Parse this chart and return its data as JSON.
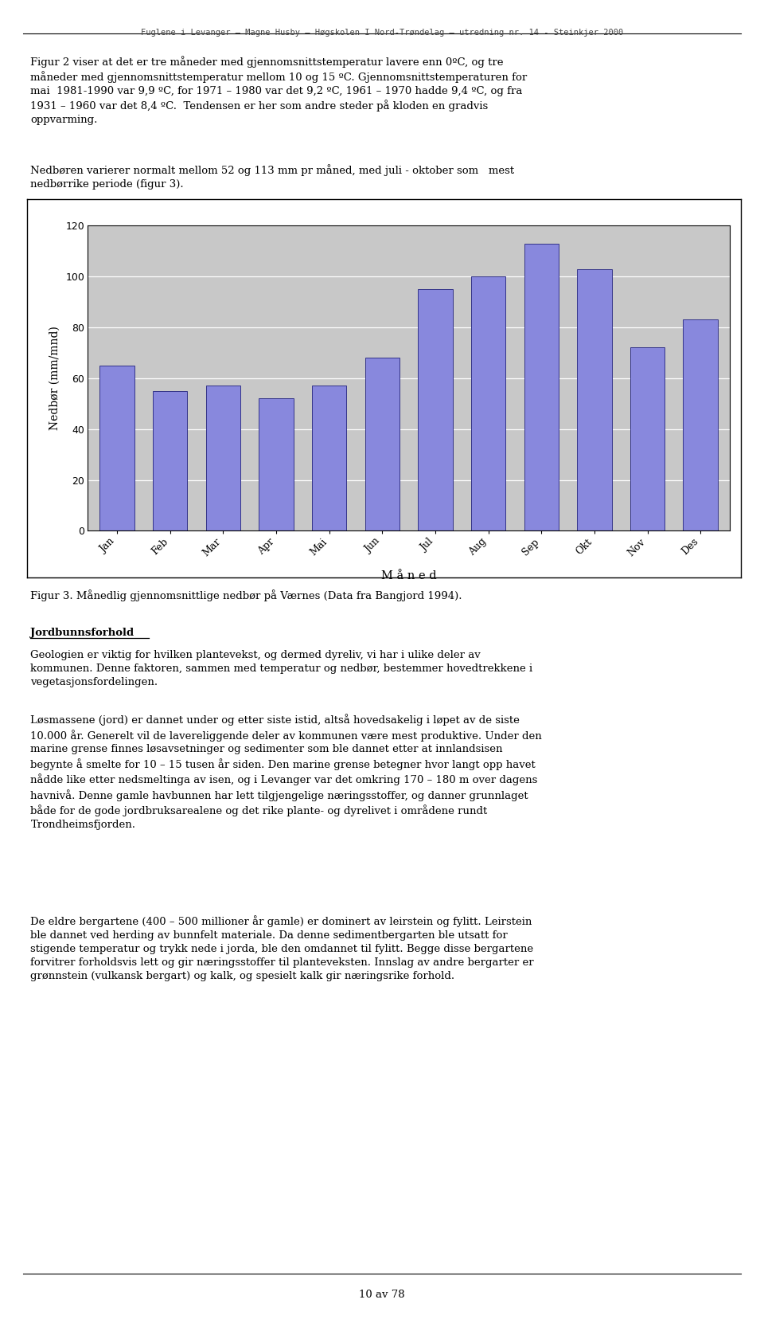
{
  "months": [
    "Jan",
    "Feb",
    "Mar",
    "Apr",
    "Mai",
    "Jun",
    "Jul",
    "Aug",
    "Sep",
    "Okt",
    "Nov",
    "Des"
  ],
  "values": [
    65,
    55,
    57,
    52,
    57,
    68,
    95,
    100,
    113,
    103,
    72,
    83
  ],
  "bar_color": "#8888dd",
  "bar_edge_color": "#333388",
  "plot_bg_color": "#c8c8c8",
  "fig_bg_color": "#ffffff",
  "ylabel": "Nedbør (mm/mnd)",
  "xlabel": "M å n e d",
  "ylim": [
    0,
    120
  ],
  "yticks": [
    0,
    20,
    40,
    60,
    80,
    100,
    120
  ],
  "tick_fontsize": 9,
  "label_fontsize": 10,
  "header_text": "Fuglene i Levanger – Magne Husby – Høgskolen I Nord-Trøndelag – utredning nr. 14 - Steinkjer 2000",
  "p1_line1": "Figur 2 viser at det er tre måneder med gjennomsnittstemperatur lavere enn 0ºC, og tre",
  "p1_line2": "måneder med gjennomsnittstemperatur mellom 10 og 15 ºC. Gjennomsnittstemperaturen for",
  "p1_line3": "mai  1981-1990 var 9,9 ºC, for 1971 – 1980 var det 9,2 ºC, 1961 – 1970 hadde 9,4 ºC, og fra",
  "p1_line4": "1931 – 1960 var det 8,4 ºC.  Tendensen er her som andre steder på kloden en gradvis",
  "p1_line5": "oppvarming.",
  "p2_line1": "Nedbøren varierer normalt mellom 52 og 113 mm pr måned, med juli - oktober som   mest",
  "p2_line2": "nedbørrike periode (figur 3).",
  "caption": "Figur 3. Månedlig gjennomsnittlige nedbør på Værnes (Data fra Bangjord 1994).",
  "section_title": "Jordbunnsforhold",
  "sp1_line1": "Geologien er viktig for hvilken plantevekst, og dermed dyreliv, vi har i ulike deler av",
  "sp1_line2": "kommunen. Denne faktoren, sammen med temperatur og nedbør, bestemmer hovedtrekkene i",
  "sp1_line3": "vegetasjonsfordelingen.",
  "sp2_line1": "Løsmassene (jord) er dannet under og etter siste istid, altså hovedsakelig i løpet av de siste",
  "sp2_line2": "10.000 år. Generelt vil de lavereliggende deler av kommunen være mest produktive. Under den",
  "sp2_line3": "marine grense finnes løsavsetninger og sedimenter som ble dannet etter at innlandsisen",
  "sp2_line4": "begynte å smelte for 10 – 15 tusen år siden. Den marine grense betegner hvor langt opp havet",
  "sp2_line5": "nådde like etter nedsmeltinga av isen, og i Levanger var det omkring 170 – 180 m over dagens",
  "sp2_line6": "havnivå. Denne gamle havbunnen har lett tilgjengelige næringsstoffer, og danner grunnlaget",
  "sp2_line7": "både for de gode jordbruksarealene og det rike plante- og dyrelivet i områdene rundt",
  "sp2_line8": "Trondheimsfjorden.",
  "sp3_line1": "De eldre bergartene (400 – 500 millioner år gamle) er dominert av leirstein og fylitt. Leirstein",
  "sp3_line2": "ble dannet ved herding av bunnfelt materiale. Da denne sedimentbergarten ble utsatt for",
  "sp3_line3": "stigende temperatur og trykk nede i jorda, ble den omdannet til fylitt. Begge disse bergartene",
  "sp3_line4": "forvitrer forholdsvis lett og gir næringsstoffer til planteveksten. Innslag av andre bergarter er",
  "sp3_line5": "grønnstein (vulkansk bergart) og kalk, og spesielt kalk gir næringsrike forhold.",
  "footer": "10 av 78"
}
